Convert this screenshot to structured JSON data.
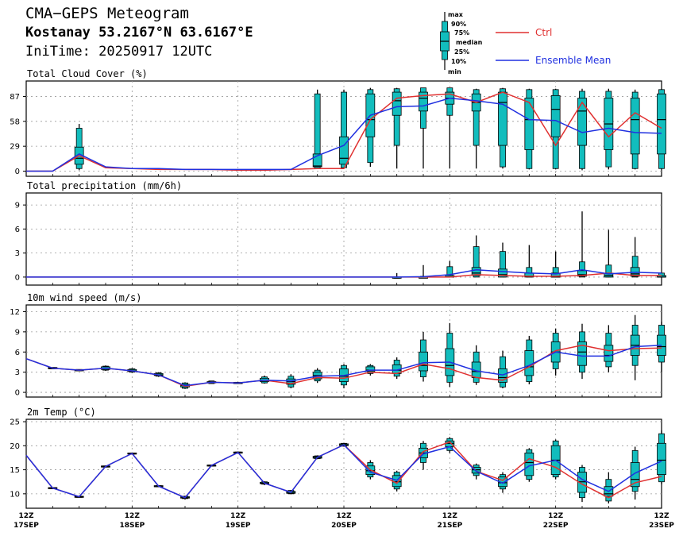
{
  "header": {
    "title": "CMA−GEPS Meteogram",
    "location": "Kostanay 53.2167°N 63.6167°E",
    "init": "IniTime: 20250917 12UTC"
  },
  "legend": {
    "keys": [
      "max",
      "90%",
      "75%",
      "median",
      "25%",
      "10%",
      "min"
    ],
    "ctrl": "Ctrl",
    "mean": "Ensemble Mean",
    "ctrl_color": "#e03030",
    "mean_color": "#2030e0",
    "box_color": "#12bdbd"
  },
  "chart_data": {
    "type": "line",
    "x_ticks": [
      {
        "hour": "12Z",
        "date": "17SEP"
      },
      {
        "hour": "12Z",
        "date": "18SEP"
      },
      {
        "hour": "12Z",
        "date": "19SEP"
      },
      {
        "hour": "12Z",
        "date": "20SEP"
      },
      {
        "hour": "12Z",
        "date": "21SEP"
      },
      {
        "hour": "12Z",
        "date": "22SEP"
      },
      {
        "hour": "12Z",
        "date": "23SEP"
      }
    ],
    "step_hours": 6,
    "panels": [
      {
        "title": "Total Cloud Cover (%)",
        "ylim": [
          -6,
          105
        ],
        "yticks": [
          0,
          29,
          58,
          87
        ],
        "ctrl": [
          0,
          0,
          18,
          4,
          3,
          2,
          2,
          2,
          1,
          1,
          2,
          3,
          3,
          60,
          85,
          88,
          90,
          80,
          92,
          80,
          30,
          80,
          40,
          68,
          50
        ],
        "mean": [
          0,
          0,
          20,
          5,
          3,
          3,
          2,
          2,
          2,
          2,
          2,
          18,
          30,
          65,
          75,
          76,
          85,
          82,
          78,
          60,
          59,
          45,
          50,
          45,
          44
        ],
        "boxes": [
          null,
          null,
          [
            1,
            3,
            8,
            15,
            28,
            50,
            55
          ],
          null,
          null,
          null,
          null,
          null,
          null,
          null,
          null,
          [
            3,
            3,
            5,
            6,
            20,
            90,
            95
          ],
          [
            3,
            4,
            8,
            15,
            40,
            92,
            95
          ],
          [
            5,
            10,
            40,
            60,
            90,
            95,
            97
          ],
          [
            3,
            30,
            65,
            82,
            92,
            96,
            97
          ],
          [
            3,
            50,
            70,
            85,
            92,
            97,
            97
          ],
          [
            3,
            65,
            78,
            85,
            92,
            97,
            97
          ],
          [
            3,
            30,
            70,
            80,
            90,
            95,
            96
          ],
          [
            3,
            5,
            30,
            80,
            92,
            96,
            97
          ],
          [
            2,
            3,
            25,
            60,
            85,
            95,
            96
          ],
          [
            2,
            3,
            40,
            72,
            88,
            95,
            96
          ],
          [
            1,
            3,
            30,
            70,
            85,
            93,
            96
          ],
          [
            2,
            5,
            25,
            55,
            85,
            93,
            96
          ],
          [
            2,
            3,
            20,
            60,
            85,
            92,
            95
          ],
          [
            2,
            3,
            20,
            60,
            90,
            95,
            96
          ]
        ]
      },
      {
        "title": "Total precipitation (mm/6h)",
        "ylim": [
          -1,
          10.5
        ],
        "yticks": [
          0,
          3,
          6,
          9
        ],
        "ctrl": [
          0,
          0,
          0,
          0,
          0,
          0,
          0,
          0,
          0,
          0,
          0,
          0,
          0,
          0,
          0,
          0,
          0,
          0.3,
          0.2,
          0.1,
          0.1,
          0.2,
          0.5,
          0.2,
          0.2
        ],
        "mean": [
          0,
          0,
          0,
          0,
          0,
          0,
          0,
          0,
          0,
          0,
          0,
          0,
          0,
          0,
          0,
          0.05,
          0.3,
          0.9,
          0.7,
          0.5,
          0.4,
          0.9,
          0.4,
          0.6,
          0.5
        ],
        "boxes": [
          null,
          null,
          null,
          null,
          null,
          null,
          null,
          null,
          null,
          null,
          null,
          null,
          null,
          null,
          [
            0,
            0,
            0,
            0,
            0,
            0,
            0.5
          ],
          [
            0,
            0,
            0,
            0,
            0,
            0.1,
            1.5
          ],
          [
            0,
            0,
            0,
            0,
            0.2,
            1.3,
            2.0
          ],
          [
            0,
            0,
            0.2,
            0.5,
            1.2,
            3.8,
            5.2
          ],
          [
            0,
            0,
            0,
            0.3,
            1.0,
            3.2,
            4.3
          ],
          [
            0,
            0,
            0,
            0.1,
            0.5,
            1.2,
            4.0
          ],
          [
            0,
            0,
            0,
            0,
            0.5,
            1.2,
            3.2
          ],
          [
            0,
            0,
            0.1,
            0.3,
            0.8,
            1.9,
            8.2
          ],
          [
            0,
            0,
            0,
            0.2,
            0.5,
            1.5,
            5.9
          ],
          [
            0,
            0,
            0.1,
            0.4,
            1.2,
            2.6,
            5.0
          ],
          [
            0,
            0,
            0,
            0,
            0.2,
            0.5,
            0.5
          ]
        ]
      },
      {
        "title": "10m wind speed (m/s)",
        "ylim": [
          -0.7,
          13
        ],
        "yticks": [
          0,
          3,
          6,
          9,
          12
        ],
        "ctrl": [
          5,
          3.6,
          3.3,
          3.6,
          3.2,
          2.6,
          0.9,
          1.5,
          1.4,
          1.8,
          1.3,
          2.2,
          2.1,
          3.0,
          2.8,
          4.2,
          3.5,
          2.2,
          1.8,
          3.8,
          6.2,
          7.0,
          6.2,
          6.5,
          6.6
        ],
        "mean": [
          5,
          3.6,
          3.3,
          3.6,
          3.2,
          2.6,
          1.0,
          1.5,
          1.4,
          1.8,
          1.7,
          2.4,
          2.5,
          3.3,
          3.3,
          4.4,
          4.5,
          3.2,
          2.6,
          4.0,
          6.0,
          5.4,
          5.4,
          6.8,
          7.0
        ],
        "boxes": [
          null,
          [
            3.5,
            3.5,
            3.5,
            3.6,
            3.7,
            3.7,
            3.7
          ],
          [
            3.2,
            3.2,
            3.2,
            3.3,
            3.4,
            3.4,
            3.4
          ],
          [
            3.2,
            3.3,
            3.4,
            3.6,
            3.8,
            3.9,
            4.0
          ],
          [
            2.9,
            3.0,
            3.1,
            3.2,
            3.4,
            3.5,
            3.6
          ],
          [
            2.3,
            2.4,
            2.5,
            2.6,
            2.8,
            2.9,
            3.0
          ],
          [
            0.5,
            0.6,
            0.8,
            1.0,
            1.2,
            1.4,
            1.5
          ],
          [
            1.3,
            1.3,
            1.4,
            1.5,
            1.6,
            1.7,
            1.7
          ],
          [
            1.3,
            1.3,
            1.3,
            1.4,
            1.5,
            1.5,
            1.5
          ],
          [
            1.3,
            1.4,
            1.6,
            1.8,
            2.1,
            2.3,
            2.5
          ],
          [
            0.6,
            0.8,
            1.2,
            1.6,
            2.0,
            2.4,
            2.7
          ],
          [
            1.4,
            1.7,
            2.0,
            2.5,
            3.0,
            3.3,
            3.6
          ],
          [
            0.6,
            1.1,
            1.6,
            2.4,
            3.5,
            4.0,
            4.2
          ],
          [
            2.5,
            2.8,
            3.1,
            3.3,
            3.8,
            4.0,
            4.2
          ],
          [
            2.0,
            2.4,
            2.8,
            3.3,
            4.1,
            4.8,
            5.2
          ],
          [
            1.6,
            2.3,
            3.2,
            4.0,
            6.0,
            7.8,
            9.0
          ],
          [
            0.8,
            1.5,
            2.5,
            4.0,
            6.5,
            8.8,
            10.3
          ],
          [
            1.1,
            1.5,
            2.2,
            3.1,
            4.5,
            6.0,
            7.0
          ],
          [
            0.6,
            0.8,
            1.5,
            2.2,
            3.5,
            5.3,
            6.2
          ],
          [
            1.2,
            1.6,
            2.5,
            3.8,
            6.2,
            7.8,
            8.4
          ],
          [
            2.5,
            3.5,
            4.5,
            6.0,
            7.5,
            8.8,
            9.5
          ],
          [
            2.0,
            3.0,
            4.0,
            6.0,
            7.5,
            9.0,
            10.2
          ],
          [
            3.0,
            3.8,
            4.6,
            5.5,
            7.0,
            8.8,
            10.0
          ],
          [
            1.8,
            4.0,
            5.5,
            7.0,
            8.5,
            10.0,
            11.5
          ],
          [
            3.0,
            4.5,
            5.5,
            6.8,
            8.5,
            10.0,
            10.5
          ]
        ]
      },
      {
        "title": "2m Temp (°C)",
        "ylim": [
          7,
          25.5
        ],
        "yticks": [
          10,
          15,
          20,
          25
        ],
        "ctrl": [
          18,
          11.2,
          9.4,
          15.7,
          18.4,
          11.6,
          9.2,
          15.9,
          18.6,
          12.2,
          10.3,
          17.6,
          20.2,
          15.0,
          12.2,
          18.8,
          20.8,
          14.7,
          12.8,
          17.3,
          15.5,
          12.0,
          9.2,
          12.3,
          13.6
        ],
        "mean": [
          18,
          11.2,
          9.4,
          15.7,
          18.4,
          11.6,
          9.2,
          15.9,
          18.6,
          12.2,
          10.3,
          17.6,
          20.2,
          14.5,
          12.8,
          18.3,
          19.8,
          14.7,
          12.2,
          15.8,
          17.0,
          13.0,
          10.5,
          14.3,
          16.8
        ],
        "boxes": [
          null,
          [
            11.1,
            11.1,
            11.2,
            11.2,
            11.3,
            11.3,
            11.3
          ],
          [
            9.2,
            9.3,
            9.3,
            9.4,
            9.5,
            9.5,
            9.6
          ],
          [
            15.5,
            15.6,
            15.6,
            15.7,
            15.8,
            15.8,
            15.9
          ],
          [
            18.2,
            18.3,
            18.3,
            18.4,
            18.5,
            18.5,
            18.6
          ],
          [
            11.4,
            11.5,
            11.5,
            11.6,
            11.7,
            11.7,
            11.8
          ],
          [
            8.8,
            9.0,
            9.1,
            9.2,
            9.4,
            9.5,
            9.6
          ],
          [
            15.7,
            15.8,
            15.8,
            15.9,
            16.0,
            16.0,
            16.1
          ],
          [
            18.4,
            18.5,
            18.5,
            18.6,
            18.7,
            18.7,
            18.8
          ],
          [
            11.8,
            12.0,
            12.1,
            12.2,
            12.4,
            12.5,
            12.6
          ],
          [
            9.9,
            10.0,
            10.1,
            10.3,
            10.5,
            10.7,
            10.8
          ],
          [
            17.2,
            17.3,
            17.4,
            17.6,
            17.8,
            17.9,
            18.0
          ],
          [
            19.8,
            19.9,
            20.0,
            20.2,
            20.4,
            20.5,
            20.6
          ],
          [
            13.0,
            13.5,
            14.0,
            14.8,
            15.8,
            16.5,
            17.0
          ],
          [
            10.5,
            11.0,
            11.5,
            12.5,
            13.8,
            14.5,
            14.8
          ],
          [
            15.0,
            16.5,
            17.5,
            18.5,
            19.5,
            20.5,
            21.0
          ],
          [
            18.5,
            19.0,
            19.8,
            20.5,
            21.0,
            21.5,
            21.8
          ],
          [
            13.0,
            13.8,
            14.3,
            15.0,
            15.5,
            16.0,
            16.3
          ],
          [
            10.2,
            11.0,
            11.5,
            12.3,
            13.5,
            14.0,
            14.5
          ],
          [
            12.5,
            13.0,
            13.8,
            16.5,
            18.5,
            19.2,
            19.5
          ],
          [
            13.0,
            13.5,
            14.0,
            17.0,
            20.0,
            21.0,
            21.3
          ],
          [
            8.3,
            9.2,
            10.3,
            12.5,
            14.5,
            15.5,
            16.0
          ],
          [
            8.0,
            8.5,
            9.5,
            10.0,
            11.5,
            13.0,
            14.5
          ],
          [
            8.8,
            10.5,
            11.5,
            13.0,
            16.5,
            19.0,
            19.8
          ],
          [
            12.0,
            12.5,
            14.0,
            17.0,
            20.5,
            22.5,
            23.2
          ]
        ]
      }
    ]
  }
}
